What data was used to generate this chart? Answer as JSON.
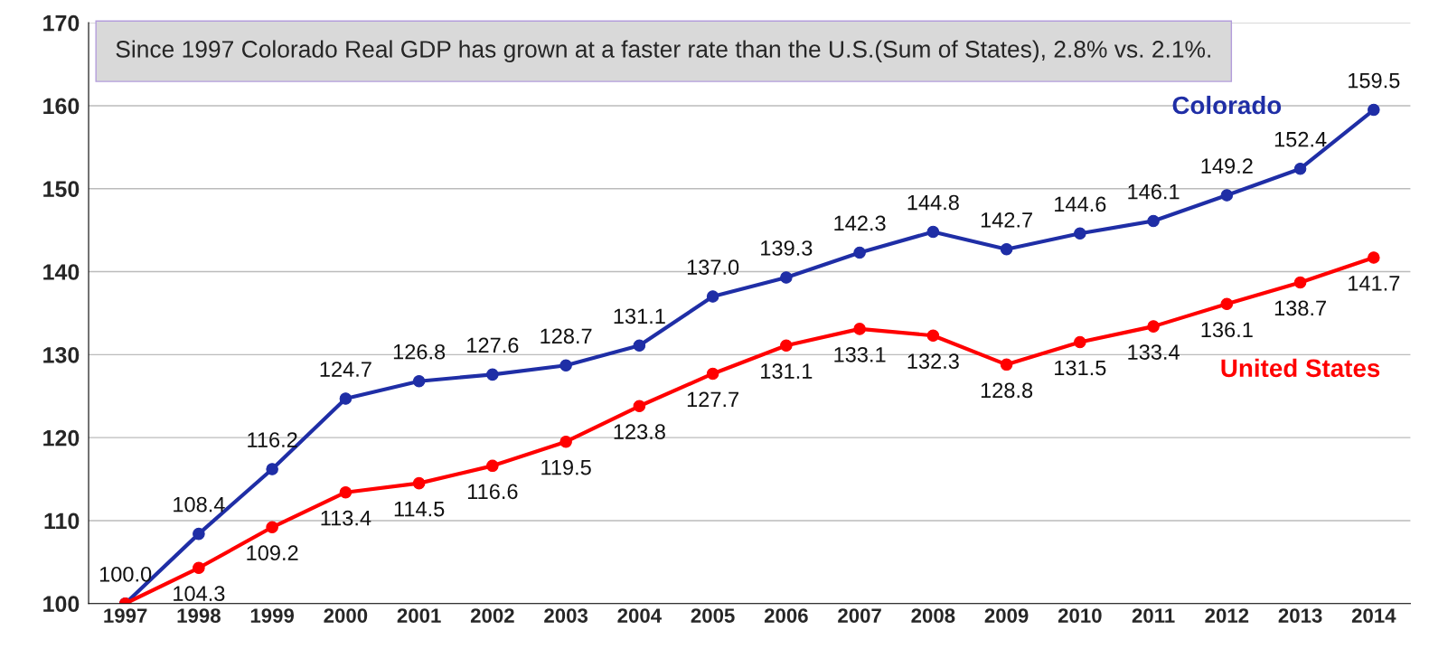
{
  "chart_data": {
    "type": "line",
    "categories": [
      "1997",
      "1998",
      "1999",
      "2000",
      "2001",
      "2002",
      "2003",
      "2004",
      "2005",
      "2006",
      "2007",
      "2008",
      "2009",
      "2010",
      "2011",
      "2012",
      "2013",
      "2014"
    ],
    "series": [
      {
        "name": "Colorado",
        "color": "#1f2ea6",
        "values": [
          100.0,
          108.4,
          116.2,
          124.7,
          126.8,
          127.6,
          128.7,
          131.1,
          137.0,
          139.3,
          142.3,
          144.8,
          142.7,
          144.6,
          146.1,
          149.2,
          152.4,
          159.5
        ],
        "value_labels": [
          "100.0",
          "108.4",
          "116.2",
          "124.7",
          "126.8",
          "127.6",
          "128.7",
          "131.1",
          "137.0",
          "139.3",
          "142.3",
          "144.8",
          "142.7",
          "144.6",
          "146.1",
          "149.2",
          "152.4",
          "159.5"
        ]
      },
      {
        "name": "United States",
        "color": "#ff0000",
        "values": [
          100.0,
          104.3,
          109.2,
          113.4,
          114.5,
          116.6,
          119.5,
          123.8,
          127.7,
          131.1,
          133.1,
          132.3,
          128.8,
          131.5,
          133.4,
          136.1,
          138.7,
          141.7
        ],
        "value_labels": [
          null,
          "104.3",
          "109.2",
          "113.4",
          "114.5",
          "116.6",
          "119.5",
          "123.8",
          "127.7",
          "131.1",
          "133.1",
          "132.3",
          "128.8",
          "131.5",
          "133.4",
          "136.1",
          "138.7",
          "141.7"
        ]
      }
    ],
    "ylim": [
      100,
      170
    ],
    "yticks": [
      100,
      110,
      120,
      130,
      140,
      150,
      160,
      170
    ],
    "grid": "y",
    "marker": "circle",
    "line_style": "solid",
    "legend": false,
    "annotations": [
      "Since 1997 Colorado Real GDP has grown at a faster rate than the U.S.(Sum of States), 2.8% vs. 2.1%."
    ]
  }
}
